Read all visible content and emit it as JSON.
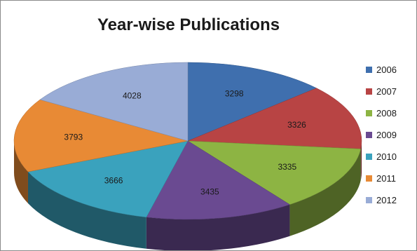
{
  "chart_data": {
    "type": "pie",
    "style": "3d",
    "title": "Year-wise Publications",
    "categories": [
      "2006",
      "2007",
      "2008",
      "2009",
      "2010",
      "2011",
      "2012"
    ],
    "values": [
      3298,
      3326,
      3335,
      3435,
      3666,
      3793,
      4028
    ],
    "colors": [
      "#3f6fae",
      "#b84444",
      "#8db443",
      "#6a4a91",
      "#3aa2bd",
      "#e88a35",
      "#99acd6"
    ],
    "data_labels": true,
    "legend_position": "right"
  }
}
